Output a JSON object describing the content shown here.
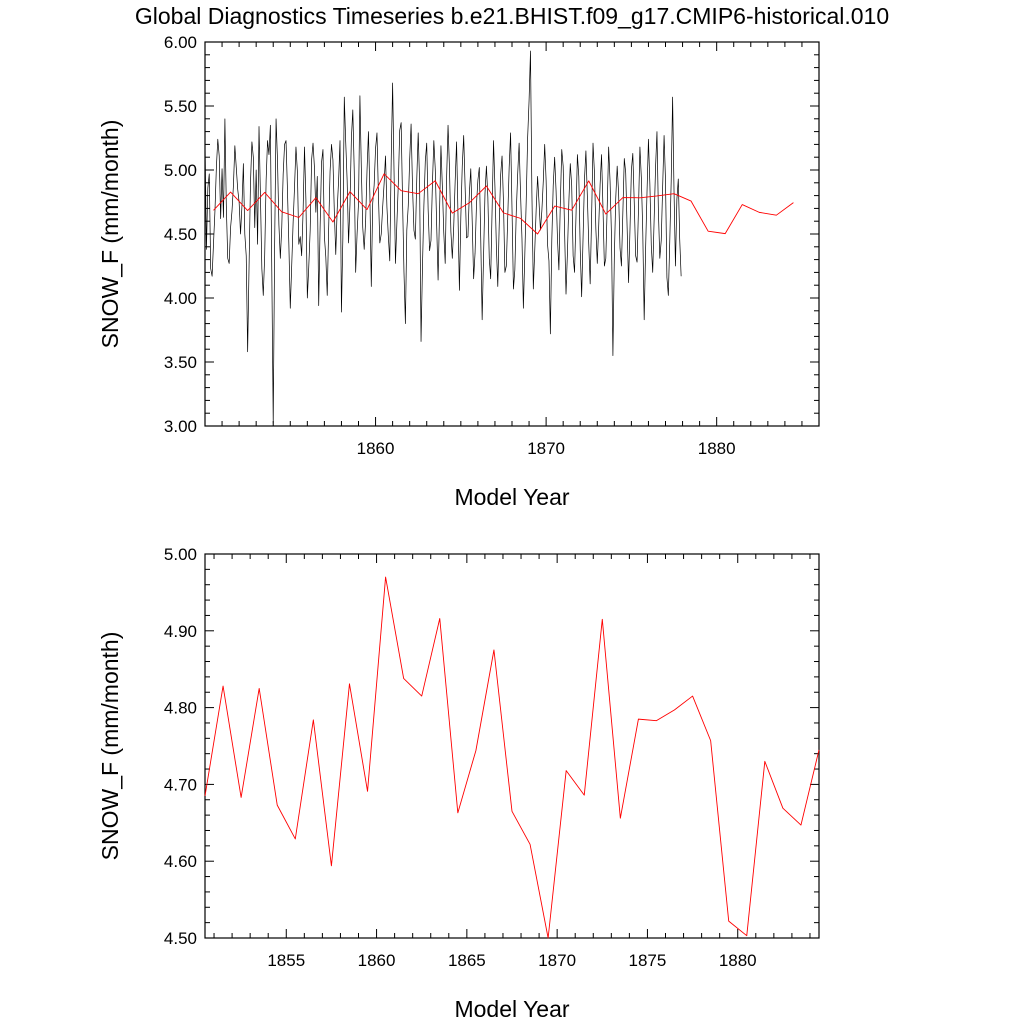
{
  "title": "Global Diagnostics Timeseries b.e21.BHIST.f09_g17.CMIP6-historical.010",
  "colors": {
    "monthly_line": "#000000",
    "annual_line": "#ff0000",
    "frame": "#000000"
  },
  "chart_data": [
    {
      "type": "line",
      "xlabel": "Model Year",
      "ylabel": "SNOW_F (mm/month)",
      "xlim": [
        1850.0,
        1886.0
      ],
      "ylim": [
        3.0,
        6.0
      ],
      "x_ticks": [
        1860,
        1870,
        1880
      ],
      "y_ticks": [
        "3.00",
        "3.50",
        "4.00",
        "4.50",
        "5.00",
        "5.50",
        "6.00"
      ],
      "grid": false,
      "series": [
        {
          "kind": "monthly",
          "color": "#000000",
          "x_start": 1850.0,
          "x_step": 0.0833333,
          "values": [
            5.25,
            4.38,
            4.86,
            4.97,
            4.23,
            4.17,
            4.43,
            4.68,
            5.02,
            5.24,
            5.11,
            4.62,
            5.01,
            4.63,
            5.4,
            4.72,
            4.31,
            4.27,
            4.55,
            4.68,
            4.88,
            5.19,
            5.02,
            4.85,
            4.75,
            4.5,
            4.72,
            5.05,
            4.5,
            4.33,
            3.58,
            4.25,
            4.9,
            5.22,
            5.1,
            4.55,
            5.0,
            4.42,
            5.34,
            4.8,
            4.23,
            4.02,
            4.33,
            4.92,
            5.23,
            5.12,
            5.35,
            4.21,
            3.02,
            4.41,
            5.4,
            5.08,
            4.57,
            4.31,
            4.55,
            4.97,
            5.2,
            5.23,
            4.85,
            4.42,
            3.92,
            4.25,
            4.59,
            4.87,
            5.18,
            4.99,
            4.42,
            4.48,
            4.33,
            4.67,
            5.18,
            4.77,
            4.0,
            4.24,
            4.53,
            5.08,
            5.21,
            5.02,
            4.67,
            4.95,
            3.94,
            4.56,
            5.06,
            5.16,
            4.48,
            4.32,
            4.02,
            4.54,
            4.99,
            5.2,
            5.08,
            4.67,
            4.34,
            4.69,
            4.92,
            5.23,
            3.89,
            4.47,
            5.57,
            5.22,
            4.92,
            4.43,
            4.73,
            5.25,
            5.47,
            4.99,
            4.2,
            4.5,
            4.74,
            5.58,
            5.01,
            4.55,
            4.38,
            4.6,
            5.0,
            5.3,
            4.81,
            4.09,
            4.74,
            4.88,
            5.17,
            5.29,
            4.81,
            4.43,
            4.5,
            4.71,
            4.89,
            5.11,
            4.71,
            4.48,
            4.29,
            5.07,
            5.68,
            4.99,
            4.27,
            4.58,
            4.89,
            5.31,
            5.37,
            4.76,
            4.2,
            3.8,
            4.53,
            4.72,
            5.08,
            5.36,
            4.87,
            4.53,
            4.46,
            4.93,
            5.29,
            4.9,
            3.66,
            4.24,
            4.72,
            5.07,
            5.21,
            4.69,
            4.37,
            4.45,
            4.89,
            5.23,
            5.01,
            4.57,
            4.14,
            4.66,
            5.19,
            4.87,
            4.51,
            4.27,
            4.94,
            5.35,
            5.02,
            4.52,
            4.31,
            4.56,
            4.91,
            5.22,
            4.65,
            4.06,
            4.63,
            5.03,
            5.27,
            4.87,
            4.47,
            4.48,
            4.82,
            5.01,
            4.6,
            4.15,
            4.35,
            4.73,
            4.92,
            5.02,
            4.47,
            3.83,
            4.33,
            4.82,
            5.03,
            4.79,
            4.31,
            4.15,
            4.69,
            5.23,
            4.87,
            4.4,
            4.09,
            4.57,
            4.96,
            5.11,
            4.75,
            4.2,
            4.25,
            4.63,
            5.02,
            5.29,
            4.7,
            4.07,
            4.22,
            4.67,
            4.97,
            5.21,
            4.82,
            4.47,
            3.92,
            4.33,
            4.76,
            5.25,
            5.54,
            5.93,
            4.82,
            4.07,
            4.37,
            4.69,
            4.95,
            4.75,
            4.53,
            4.68,
            4.91,
            5.2,
            4.92,
            4.42,
            4.29,
            3.72,
            4.45,
            4.88,
            5.1,
            4.84,
            4.46,
            4.22,
            4.74,
            5.16,
            5.03,
            4.52,
            4.03,
            4.35,
            4.75,
            5.05,
            4.88,
            4.33,
            4.2,
            4.63,
            5.12,
            4.95,
            4.38,
            4.01,
            4.47,
            4.93,
            5.15,
            4.8,
            4.42,
            4.11,
            4.63,
            5.21,
            4.98,
            4.54,
            4.27,
            4.56,
            4.89,
            5.12,
            4.71,
            4.25,
            4.31,
            4.72,
            5.18,
            4.91,
            4.48,
            3.55,
            4.32,
            4.78,
            5.03,
            4.82,
            4.39,
            4.25,
            4.67,
            5.09,
            4.98,
            4.55,
            4.12,
            4.53,
            5.0,
            5.13,
            4.75,
            4.33,
            4.28,
            4.7,
            5.18,
            4.94,
            4.52,
            3.83,
            4.38,
            4.83,
            5.24,
            4.89,
            4.41,
            4.2,
            4.61,
            5.02,
            5.3,
            4.68,
            4.31,
            4.45,
            4.87,
            5.27,
            4.92,
            4.16,
            4.02,
            4.44,
            4.91,
            5.57,
            4.83,
            4.25,
            4.77,
            4.93,
            4.46,
            4.17
          ]
        },
        {
          "kind": "annual",
          "color": "#ff0000",
          "x": [
            1850.5,
            1851.5,
            1852.5,
            1853.5,
            1854.5,
            1855.5,
            1856.5,
            1857.5,
            1858.5,
            1859.5,
            1860.5,
            1861.5,
            1862.5,
            1863.5,
            1864.5,
            1865.5,
            1866.5,
            1867.5,
            1868.5,
            1869.5,
            1870.5,
            1871.5,
            1872.5,
            1873.5,
            1874.5,
            1875.5,
            1876.5,
            1877.5,
            1878.5,
            1879.5,
            1880.5,
            1881.5,
            1882.5,
            1883.5,
            1884.5
          ],
          "values": [
            4.685,
            4.828,
            4.683,
            4.825,
            4.673,
            4.629,
            4.784,
            4.594,
            4.831,
            4.691,
            4.97,
            4.838,
            4.815,
            4.916,
            4.663,
            4.744,
            4.875,
            4.665,
            4.622,
            4.5,
            4.718,
            4.686,
            4.915,
            4.656,
            4.785,
            4.783,
            4.797,
            4.815,
            4.757,
            4.522,
            4.503,
            4.73,
            4.669,
            4.647,
            4.745
          ]
        }
      ]
    },
    {
      "type": "line",
      "xlabel": "Model Year",
      "ylabel": "SNOW_F (mm/month)",
      "xlim": [
        1850.5,
        1884.5
      ],
      "ylim": [
        4.5,
        5.0
      ],
      "x_ticks": [
        1855,
        1860,
        1865,
        1870,
        1875,
        1880
      ],
      "y_ticks": [
        "4.50",
        "4.60",
        "4.70",
        "4.80",
        "4.90",
        "5.00"
      ],
      "grid": false,
      "series": [
        {
          "kind": "annual",
          "color": "#ff0000",
          "x": [
            1850.5,
            1851.5,
            1852.5,
            1853.5,
            1854.5,
            1855.5,
            1856.5,
            1857.5,
            1858.5,
            1859.5,
            1860.5,
            1861.5,
            1862.5,
            1863.5,
            1864.5,
            1865.5,
            1866.5,
            1867.5,
            1868.5,
            1869.5,
            1870.5,
            1871.5,
            1872.5,
            1873.5,
            1874.5,
            1875.5,
            1876.5,
            1877.5,
            1878.5,
            1879.5,
            1880.5,
            1881.5,
            1882.5,
            1883.5,
            1884.5
          ],
          "values": [
            4.685,
            4.828,
            4.683,
            4.825,
            4.673,
            4.629,
            4.784,
            4.594,
            4.831,
            4.691,
            4.97,
            4.838,
            4.815,
            4.916,
            4.663,
            4.744,
            4.875,
            4.665,
            4.622,
            4.5,
            4.718,
            4.686,
            4.915,
            4.656,
            4.785,
            4.783,
            4.797,
            4.815,
            4.757,
            4.522,
            4.503,
            4.73,
            4.669,
            4.647,
            4.745
          ]
        }
      ]
    }
  ]
}
